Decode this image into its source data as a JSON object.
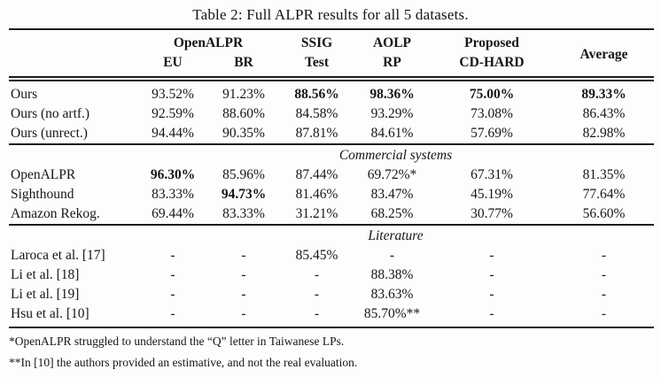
{
  "title": "Table 2: Full ALPR results for all 5 datasets.",
  "table": {
    "header": {
      "openalpr": "OpenALPR",
      "ssig": "SSIG",
      "aolp": "AOLP",
      "proposed": "Proposed",
      "average": "Average",
      "sub": [
        "EU",
        "BR",
        "Test",
        "RP",
        "CD-HARD"
      ]
    },
    "sections": [
      {
        "name": "",
        "rows": [
          {
            "label": "Ours",
            "values": [
              "93.52%",
              "91.23%",
              "88.56%",
              "98.36%",
              "75.00%",
              "89.33%"
            ]
          },
          {
            "label": "Ours (no artf.)",
            "values": [
              "92.59%",
              "88.60%",
              "84.58%",
              "93.29%",
              "73.08%",
              "86.43%"
            ]
          },
          {
            "label": "Ours (unrect.)",
            "values": [
              "94.44%",
              "90.35%",
              "87.81%",
              "84.61%",
              "57.69%",
              "82.98%"
            ]
          }
        ]
      },
      {
        "name": "Commercial systems",
        "rows": [
          {
            "label": "OpenALPR",
            "values": [
              "96.30%",
              "85.96%",
              "87.44%",
              "69.72%*",
              "67.31%",
              "81.35%"
            ]
          },
          {
            "label": "Sighthound",
            "values": [
              "83.33%",
              "94.73%",
              "81.46%",
              "83.47%",
              "45.19%",
              "77.64%"
            ]
          },
          {
            "label": "Amazon Rekog.",
            "values": [
              "69.44%",
              "83.33%",
              "31.21%",
              "68.25%",
              "30.77%",
              "56.60%"
            ]
          }
        ]
      },
      {
        "name": "Literature",
        "rows": [
          {
            "label": "Laroca et al. [17]",
            "values": [
              "-",
              "-",
              "85.45%",
              "-",
              "-",
              "-"
            ]
          },
          {
            "label": "Li et al. [18]",
            "values": [
              "-",
              "-",
              "-",
              "88.38%",
              "-",
              "-"
            ]
          },
          {
            "label": "Li et al. [19]",
            "values": [
              "-",
              "-",
              "-",
              "83.63%",
              "-",
              "-"
            ]
          },
          {
            "label": "Hsu et al. [10]",
            "values": [
              "-",
              "-",
              "-",
              "85.70%**",
              "-",
              "-"
            ]
          }
        ]
      }
    ]
  },
  "footnotes": [
    "*OpenALPR struggled to understand the “Q” letter in Taiwanese LPs.",
    "**In [10] the authors provided an estimative, and not the real evaluation."
  ]
}
